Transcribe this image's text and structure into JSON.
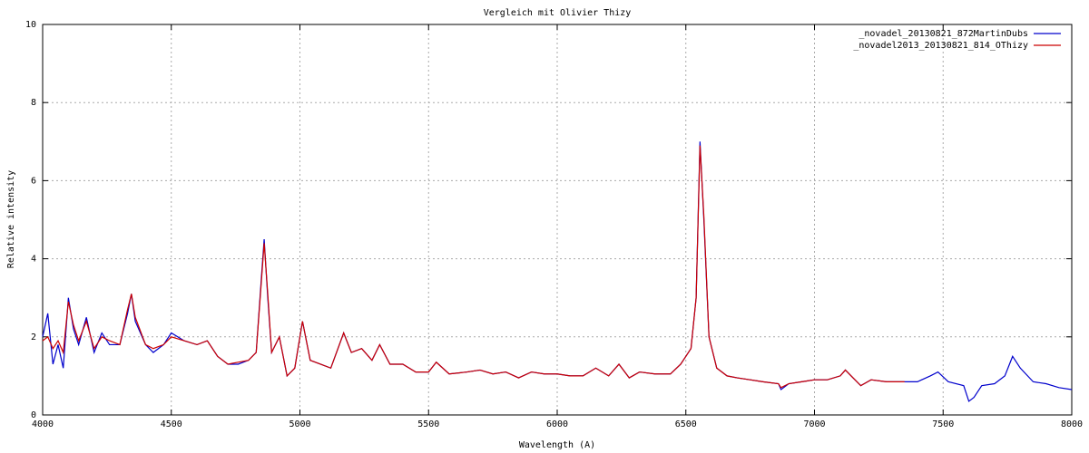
{
  "chart_data": {
    "type": "line",
    "title": "Vergleich mit Olivier Thizy",
    "x_label": "Wavelength (A)",
    "y_label": "Relative intensity",
    "xlim": [
      4000,
      8000
    ],
    "xticks": [
      4000,
      4500,
      5000,
      5500,
      6000,
      6500,
      7000,
      7500,
      8000
    ],
    "ylim": [
      0,
      10
    ],
    "yticks": [
      0,
      2,
      4,
      6,
      8,
      10
    ],
    "grid": true,
    "legend": "top-right",
    "x": [
      4000,
      4020,
      4040,
      4060,
      4080,
      4100,
      4120,
      4140,
      4170,
      4200,
      4230,
      4260,
      4300,
      4330,
      4345,
      4360,
      4400,
      4430,
      4470,
      4500,
      4550,
      4600,
      4640,
      4680,
      4720,
      4760,
      4800,
      4830,
      4850,
      4861,
      4875,
      4890,
      4920,
      4950,
      4980,
      5010,
      5040,
      5080,
      5120,
      5170,
      5200,
      5240,
      5280,
      5310,
      5350,
      5400,
      5450,
      5500,
      5530,
      5580,
      5650,
      5700,
      5750,
      5800,
      5850,
      5900,
      5950,
      6000,
      6050,
      6100,
      6150,
      6200,
      6240,
      6280,
      6320,
      6380,
      6440,
      6480,
      6520,
      6540,
      6555,
      6570,
      6590,
      6620,
      6660,
      6700,
      6750,
      6800,
      6860,
      6870,
      6900,
      6950,
      7000,
      7050,
      7100,
      7120,
      7150,
      7180,
      7220,
      7280,
      7350,
      7400,
      7450,
      7480,
      7520,
      7580,
      7600,
      7620,
      7650,
      7700,
      7740,
      7770,
      7800,
      7850,
      7900,
      7950,
      8000
    ],
    "series": [
      {
        "name": "_novadel_20130821_872MartinDubs",
        "color": "#0000cc",
        "values": [
          2.0,
          2.6,
          1.3,
          1.8,
          1.2,
          3.0,
          2.2,
          1.8,
          2.5,
          1.6,
          2.1,
          1.8,
          1.8,
          2.6,
          3.1,
          2.4,
          1.8,
          1.6,
          1.8,
          2.1,
          1.9,
          1.8,
          1.9,
          1.5,
          1.3,
          1.3,
          1.4,
          1.6,
          3.5,
          4.5,
          3.0,
          1.6,
          2.0,
          1.0,
          1.2,
          2.4,
          1.4,
          1.3,
          1.2,
          2.1,
          1.6,
          1.7,
          1.4,
          1.8,
          1.3,
          1.3,
          1.1,
          1.1,
          1.35,
          1.05,
          1.1,
          1.15,
          1.05,
          1.1,
          0.95,
          1.1,
          1.05,
          1.05,
          1.0,
          1.0,
          1.2,
          1.0,
          1.3,
          0.95,
          1.1,
          1.05,
          1.05,
          1.3,
          1.7,
          3.0,
          7.0,
          5.0,
          2.0,
          1.2,
          1.0,
          0.95,
          0.9,
          0.85,
          0.8,
          0.65,
          0.8,
          0.85,
          0.9,
          0.9,
          1.0,
          1.15,
          0.95,
          0.75,
          0.9,
          0.85,
          0.85,
          0.85,
          1.0,
          1.1,
          0.85,
          0.75,
          0.35,
          0.45,
          0.75,
          0.8,
          1.0,
          1.5,
          1.2,
          0.85,
          0.8,
          0.7,
          0.65
        ]
      },
      {
        "name": "_novadel2013_20130821_814_OThizy",
        "color": "#cc0000",
        "values": [
          1.9,
          2.0,
          1.7,
          1.9,
          1.6,
          2.9,
          2.3,
          1.9,
          2.4,
          1.7,
          2.0,
          1.9,
          1.8,
          2.7,
          3.1,
          2.5,
          1.8,
          1.7,
          1.8,
          2.0,
          1.9,
          1.8,
          1.9,
          1.5,
          1.3,
          1.35,
          1.4,
          1.6,
          3.4,
          4.4,
          3.1,
          1.6,
          2.0,
          1.0,
          1.2,
          2.4,
          1.4,
          1.3,
          1.2,
          2.1,
          1.6,
          1.7,
          1.4,
          1.8,
          1.3,
          1.3,
          1.1,
          1.1,
          1.35,
          1.05,
          1.1,
          1.15,
          1.05,
          1.1,
          0.95,
          1.1,
          1.05,
          1.05,
          1.0,
          1.0,
          1.2,
          1.0,
          1.3,
          0.95,
          1.1,
          1.05,
          1.05,
          1.3,
          1.7,
          3.0,
          6.9,
          5.1,
          2.0,
          1.2,
          1.0,
          0.95,
          0.9,
          0.85,
          0.8,
          0.7,
          0.8,
          0.85,
          0.9,
          0.9,
          1.0,
          1.15,
          0.95,
          0.75,
          0.9,
          0.85,
          0.85,
          null,
          null,
          null,
          null,
          null,
          null,
          null,
          null,
          null,
          null,
          null,
          null,
          null,
          null,
          null,
          null
        ]
      }
    ]
  }
}
